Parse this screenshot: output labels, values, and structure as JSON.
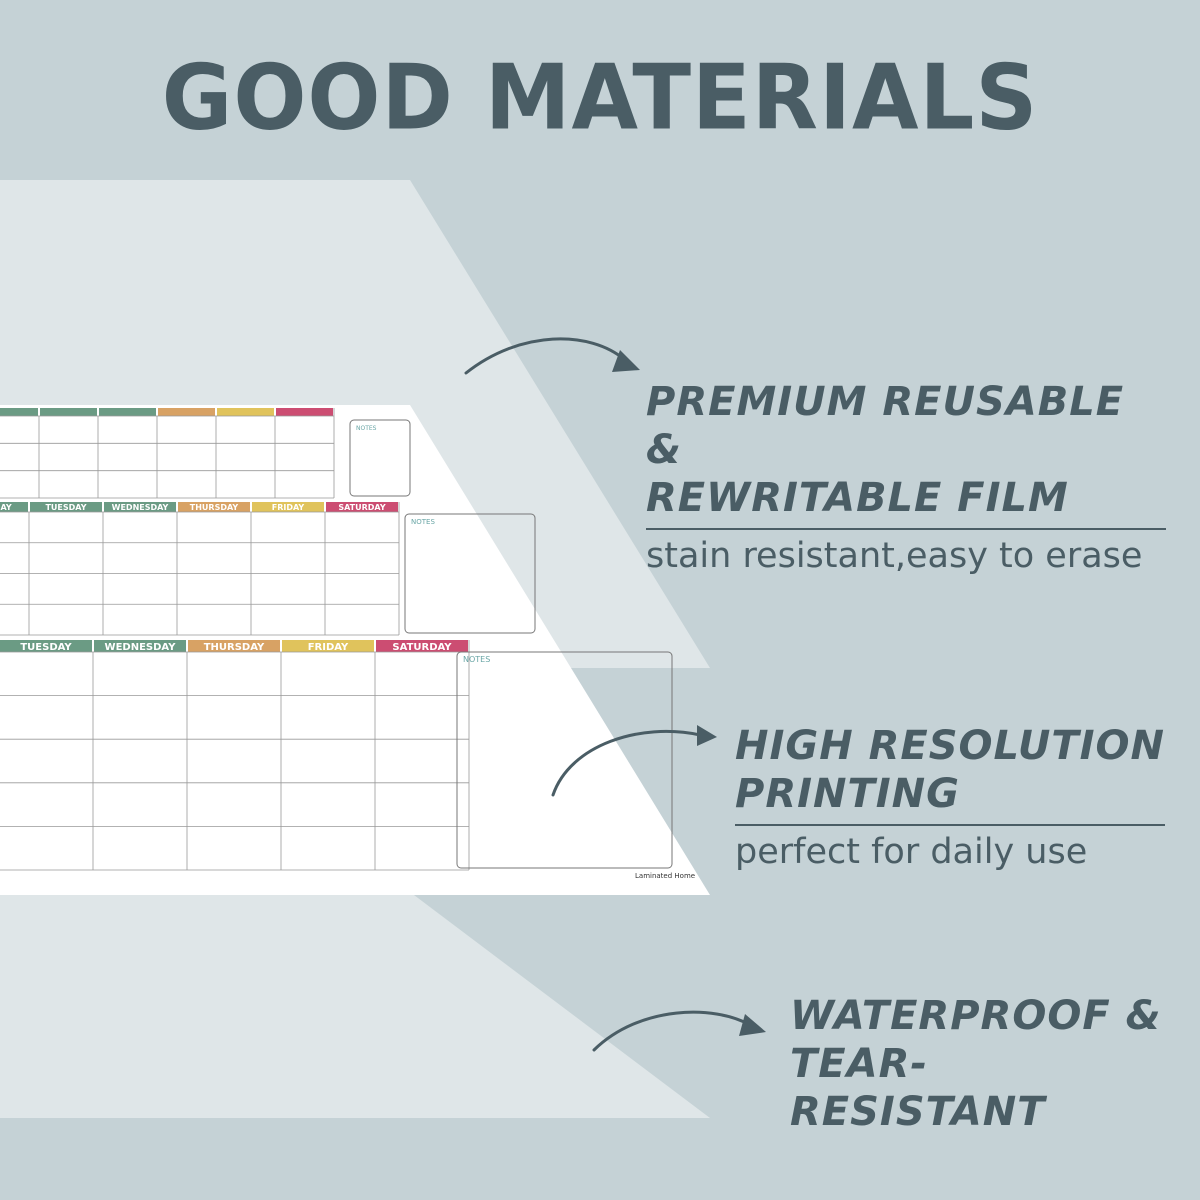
{
  "title": "GOOD MATERIALS",
  "features": [
    {
      "line1": "PREMIUM REUSABLE &",
      "line2": "REWRITABLE FILM",
      "subtitle": "stain resistant,easy to erase"
    },
    {
      "line1": "HIGH RESOLUTION",
      "line2": "PRINTING",
      "subtitle": "perfect for daily use"
    },
    {
      "line1": "WATERPROOF &",
      "line2": "TEAR-RESISTANT",
      "subtitle": ""
    }
  ],
  "calendar": {
    "days": [
      "MONDAY",
      "TUESDAY",
      "WEDNESDAY",
      "THURSDAY",
      "FRIDAY",
      "SATURDAY"
    ],
    "notes_label": "NOTES",
    "day_colors": [
      "#6b9b84",
      "#6b9b84",
      "#6b9b84",
      "#d8a264",
      "#e0c35c",
      "#cc4d72"
    ],
    "brand": "Laminated Home"
  },
  "colors": {
    "background": "#c5d2d6",
    "text": "#4a5d65",
    "layer": "#dfe6e8"
  },
  "icons": [
    "curved-arrow-icon"
  ]
}
